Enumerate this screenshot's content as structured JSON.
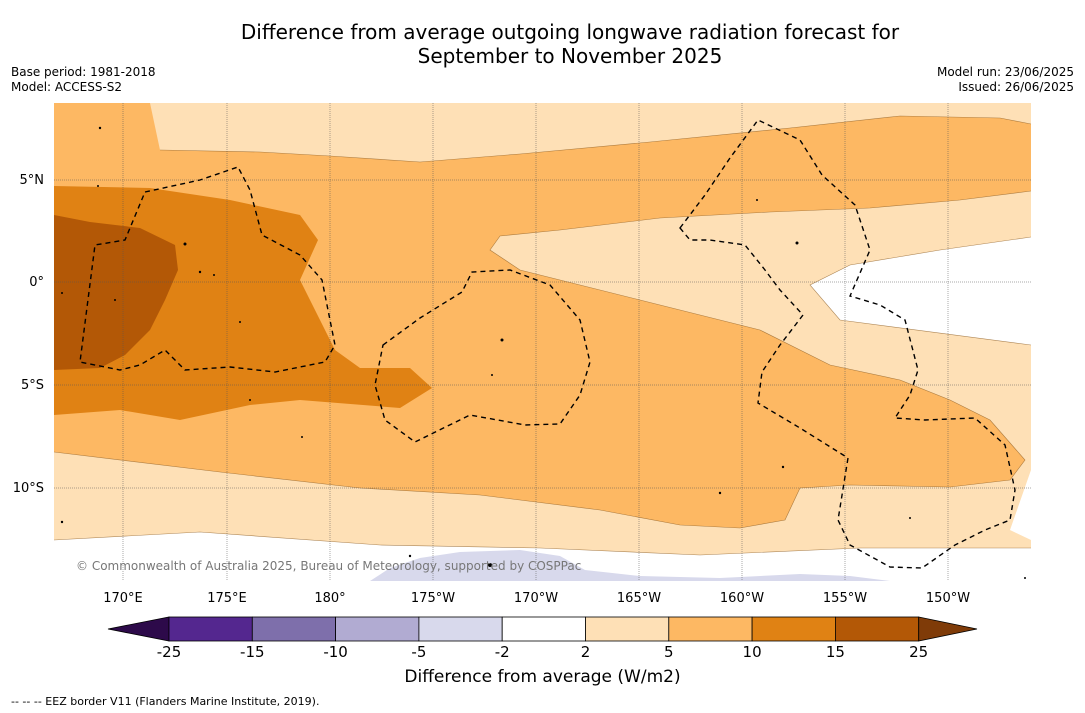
{
  "title_line1": "Difference from average outgoing longwave radiation forecast for",
  "title_line2": "September to November 2025",
  "base_period": "Base period: 1981-2018",
  "model": "Model: ACCESS-S2",
  "model_run": "Model run: 23/06/2025",
  "issued": "Issued: 26/06/2025",
  "copyright": "© Commonwealth of Australia 2025, Bureau of Meteorology, supported by COSPPac",
  "lat_labels": [
    "5°N",
    "0°",
    "5°S",
    "10°S"
  ],
  "lon_labels": [
    "170°E",
    "175°E",
    "180°",
    "175°W",
    "170°W",
    "165°W",
    "160°W",
    "155°W",
    "150°W"
  ],
  "colorbar": {
    "label": "Difference from average (W/m2)",
    "ticks": [
      "-25",
      "-15",
      "-10",
      "-5",
      "-2",
      "2",
      "5",
      "10",
      "15",
      "25"
    ],
    "colors": {
      "below_min": "#2d0a4a",
      "n25_n15": "#54278f",
      "n15_n10": "#7e6fab",
      "n10_n5": "#b1abd2",
      "n5_n2": "#d8d9ec",
      "n2_2": "#ffffff",
      "p2_5": "#fee0b6",
      "p5_10": "#fdb863",
      "p10_15": "#e08214",
      "p15_25": "#b35806",
      "above_max": "#7f3b08"
    }
  },
  "legend_note": "--  --  -- EEZ border V11 (Flanders Marine Institute, 2019)."
}
